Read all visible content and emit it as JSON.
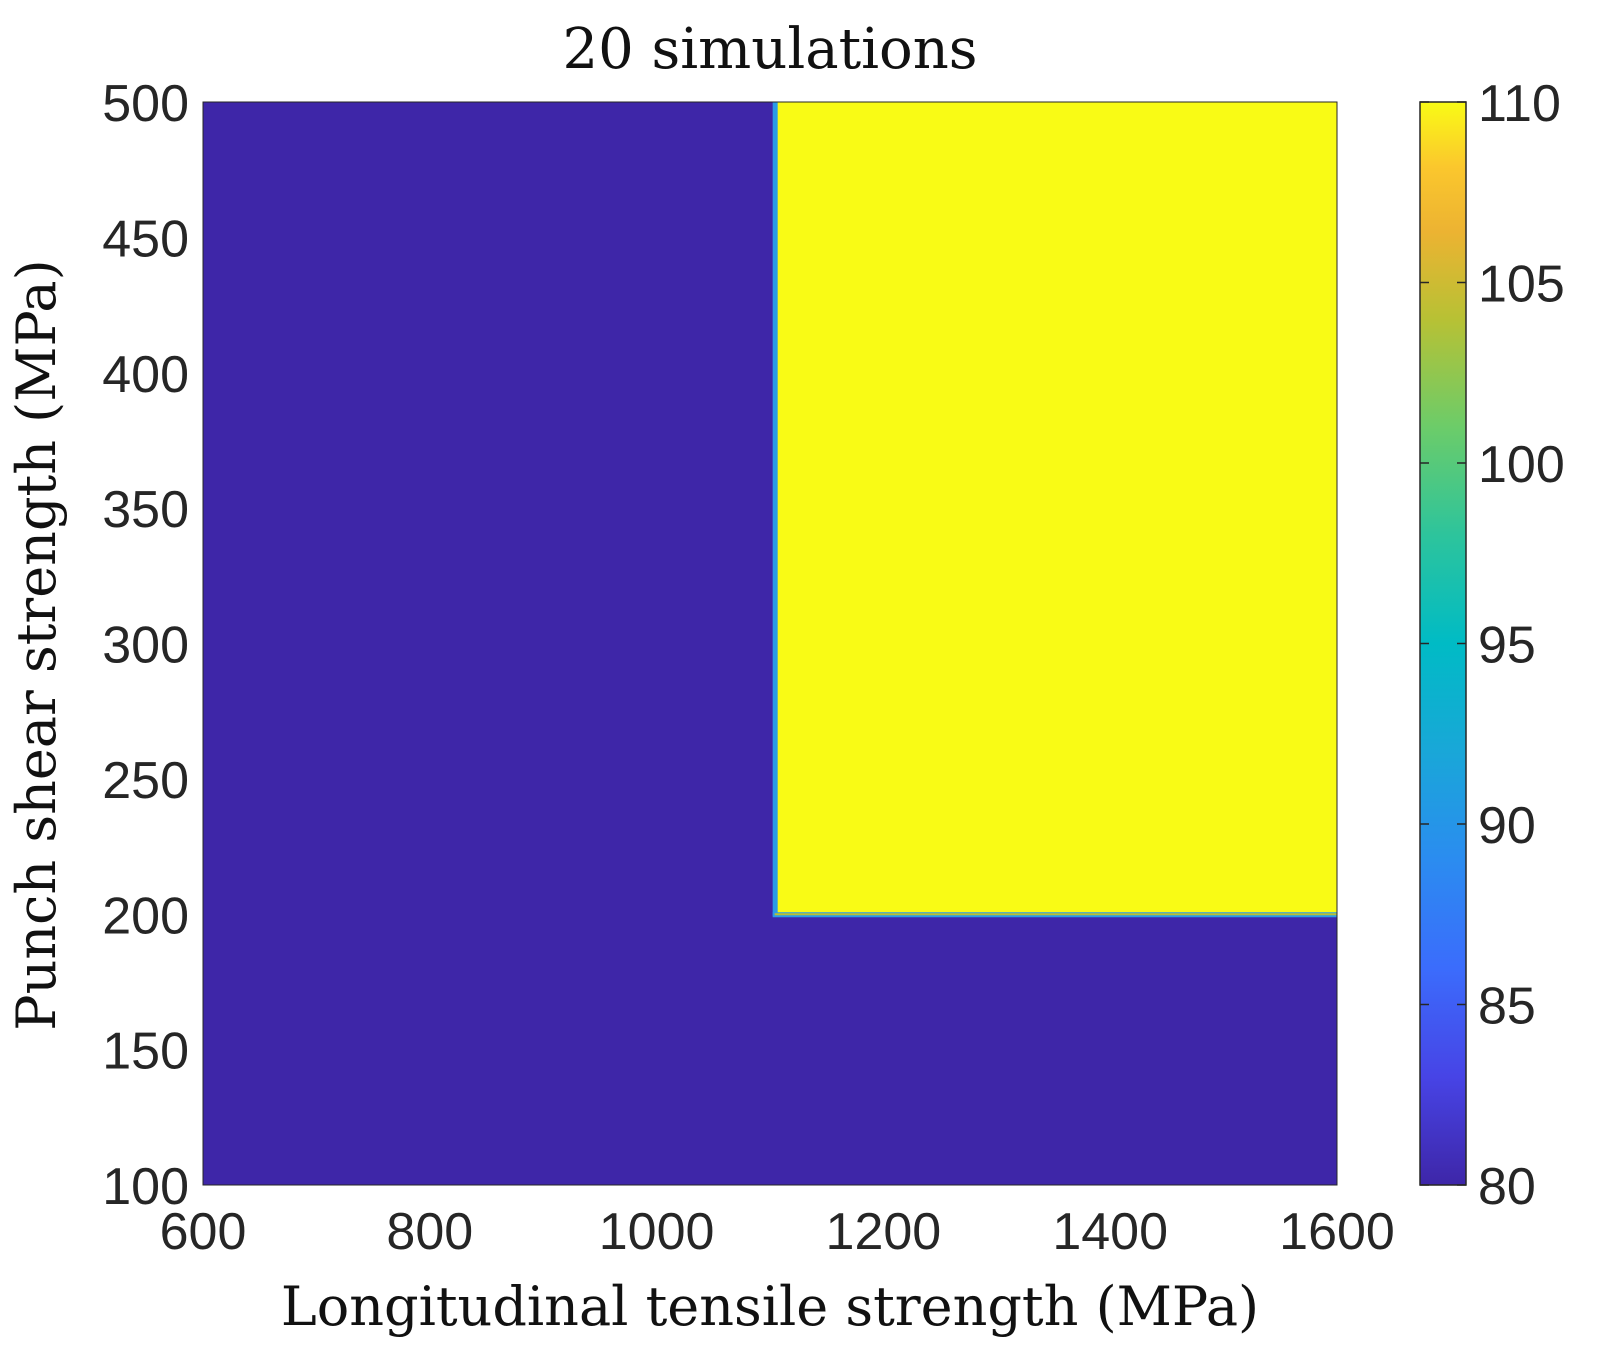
{
  "chart_data": {
    "type": "heatmap",
    "title": "20 simulations",
    "xlabel": "Longitudinal tensile strength (MPa)",
    "ylabel": "Punch shear strength (MPa)",
    "xlim": [
      600,
      1600
    ],
    "ylim": [
      100,
      500
    ],
    "xticks": [
      600,
      800,
      1000,
      1200,
      1400,
      1600
    ],
    "yticks": [
      100,
      150,
      200,
      250,
      300,
      350,
      400,
      450,
      500
    ],
    "colorbar": {
      "colormap": "parula",
      "range": [
        80,
        110
      ],
      "ticks": [
        80,
        85,
        90,
        95,
        100,
        105,
        110
      ]
    },
    "regions": [
      {
        "x_range": [
          600,
          1600
        ],
        "y_range": [
          100,
          500
        ],
        "value": 80
      },
      {
        "x_range": [
          1105,
          1600
        ],
        "y_range": [
          200,
          500
        ],
        "value": 110
      }
    ],
    "colors": {
      "low": "#3e26a8",
      "high": "#f9fb15"
    }
  }
}
